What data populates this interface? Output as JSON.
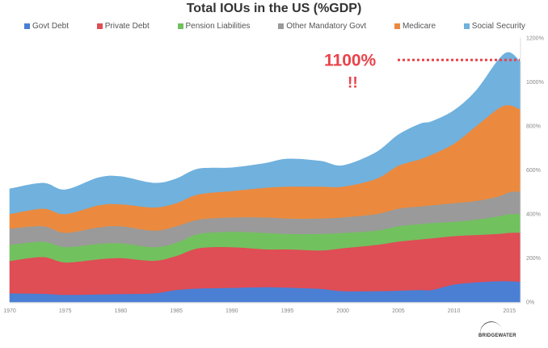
{
  "chart_data": {
    "type": "area",
    "stacked": true,
    "title": "Total IOUs in the US (%GDP)",
    "xlabel": "",
    "ylabel": "",
    "x": [
      1970,
      1973,
      1975,
      1978,
      1980,
      1983,
      1985,
      1987,
      1990,
      1993,
      1995,
      1998,
      2000,
      2003,
      2005,
      2007,
      2008,
      2010,
      2012,
      2014,
      2015,
      2016
    ],
    "xlim": [
      1970,
      2016
    ],
    "ylim": [
      0,
      1200
    ],
    "x_ticks": [
      "1970",
      "1975",
      "1980",
      "1985",
      "1990",
      "1995",
      "2000",
      "2005",
      "2010",
      "2015"
    ],
    "y_ticks": [
      "0%",
      "200%",
      "400%",
      "600%",
      "800%",
      "1000%",
      "1200%"
    ],
    "y_tick_values": [
      0,
      200,
      400,
      600,
      800,
      1000,
      1200
    ],
    "legend_position": "top",
    "grid": false,
    "series": [
      {
        "name": "Govt Debt",
        "color": "#4a7fd4",
        "values": [
          40,
          38,
          33,
          35,
          37,
          40,
          55,
          62,
          65,
          68,
          66,
          60,
          50,
          50,
          52,
          55,
          55,
          80,
          90,
          95,
          95,
          92
        ]
      },
      {
        "name": "Private Debt",
        "color": "#df4d55",
        "values": [
          147,
          167,
          147,
          160,
          163,
          148,
          155,
          183,
          185,
          172,
          174,
          175,
          195,
          210,
          223,
          230,
          235,
          220,
          215,
          215,
          220,
          224
        ]
      },
      {
        "name": "Pension Liabilities",
        "color": "#72c15f",
        "values": [
          73,
          70,
          70,
          70,
          68,
          62,
          60,
          65,
          70,
          75,
          70,
          75,
          70,
          65,
          70,
          70,
          70,
          65,
          70,
          80,
          85,
          84
        ]
      },
      {
        "name": "Other Mandatory Govt",
        "color": "#9a9a9a",
        "values": [
          74,
          70,
          65,
          75,
          77,
          75,
          75,
          65,
          65,
          70,
          70,
          70,
          70,
          75,
          80,
          80,
          80,
          85,
          85,
          90,
          100,
          103
        ]
      },
      {
        "name": "Medicare",
        "color": "#eb8a3e",
        "values": [
          66,
          80,
          85,
          100,
          100,
          105,
          105,
          115,
          120,
          135,
          145,
          145,
          140,
          160,
          195,
          215,
          230,
          270,
          340,
          400,
          395,
          372
        ]
      },
      {
        "name": "Social Security",
        "color": "#70b1de",
        "values": [
          114,
          115,
          110,
          125,
          125,
          110,
          110,
          115,
          105,
          110,
          125,
          115,
          95,
          120,
          140,
          160,
          150,
          150,
          160,
          220,
          239,
          215
        ]
      }
    ],
    "annotations": [
      {
        "text": "1100%",
        "value": 1100,
        "line": "dotted horizontal at 1100%"
      },
      {
        "text": "!!"
      }
    ]
  },
  "branding": {
    "logo_text": "BRIDGEWATER"
  }
}
